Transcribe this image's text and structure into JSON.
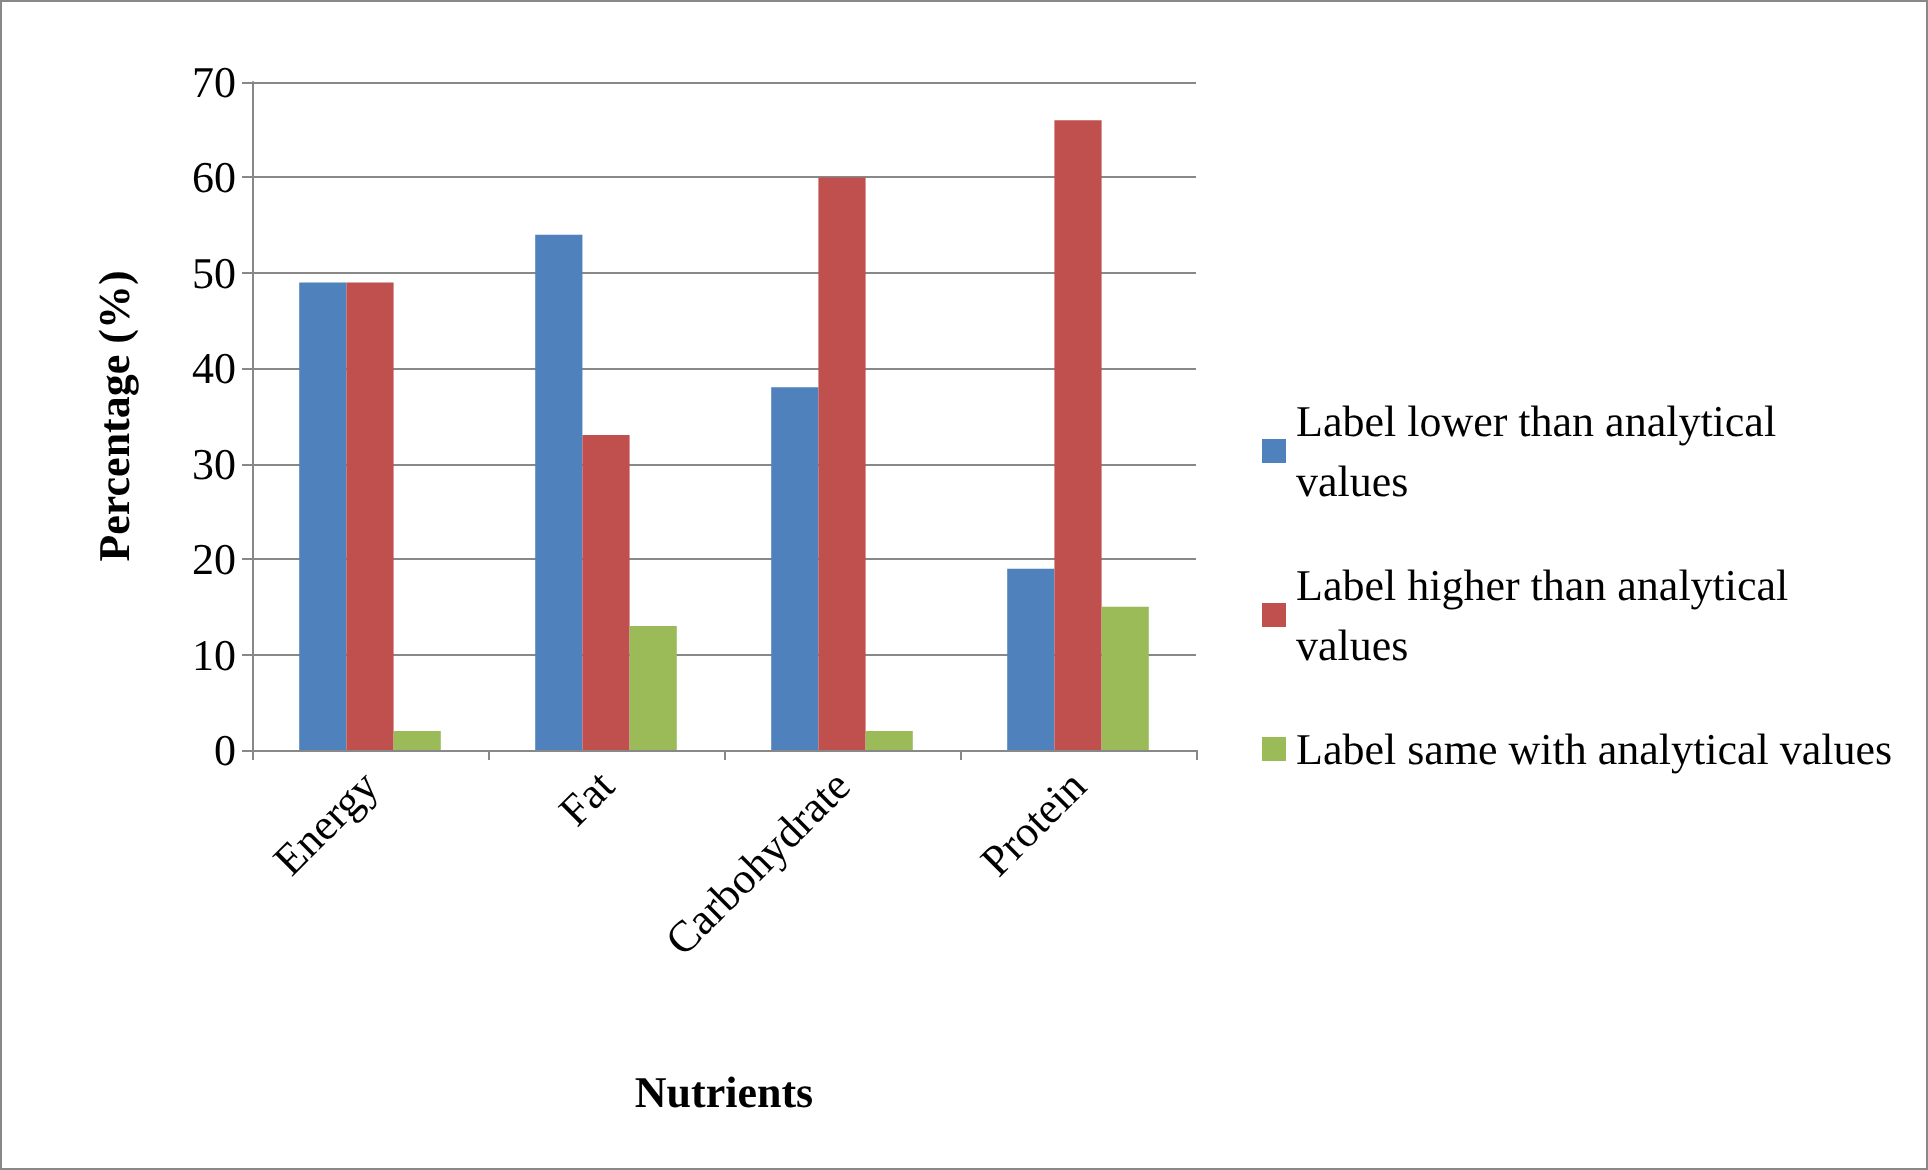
{
  "chart_data": {
    "type": "bar",
    "xlabel": "Nutrients",
    "ylabel": "Percentage (%)",
    "categories": [
      "Energy",
      "Fat",
      "Carbohydrate",
      "Protein"
    ],
    "series": [
      {
        "name": "Label lower than analytical values",
        "color": "#4f81bd",
        "values": [
          49,
          54,
          38,
          19
        ]
      },
      {
        "name": "Label higher than analytical values",
        "color": "#c0504d",
        "values": [
          49,
          33,
          60,
          66
        ]
      },
      {
        "name": "Label same with analytical values",
        "color": "#9bbb59",
        "values": [
          2,
          13,
          2,
          15
        ]
      }
    ],
    "ylim": [
      0,
      70
    ],
    "yticks": [
      0,
      10,
      20,
      30,
      40,
      50,
      60,
      70
    ],
    "grid": "y",
    "legend": "right"
  }
}
